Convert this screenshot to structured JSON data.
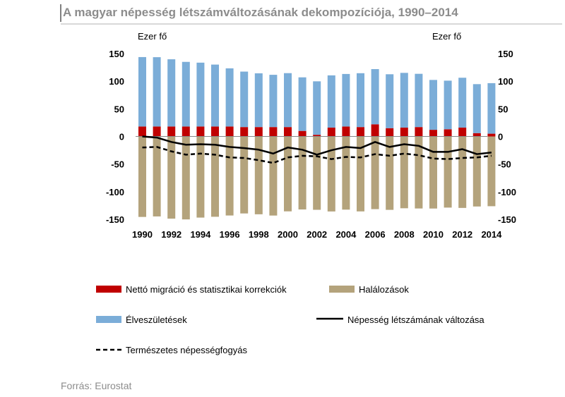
{
  "chart_data": {
    "type": "bar",
    "title": "A magyar népesség létszámváltozásának dekompozíciója, 1990–2014",
    "ylabel_left": "Ezer fő",
    "ylabel_right": "Ezer fő",
    "ylim": [
      -150,
      150
    ],
    "yticks": [
      150,
      100,
      50,
      0,
      -50,
      -100,
      -150
    ],
    "x": [
      1990,
      1991,
      1992,
      1993,
      1994,
      1995,
      1996,
      1997,
      1998,
      1999,
      2000,
      2001,
      2002,
      2003,
      2004,
      2005,
      2006,
      2007,
      2008,
      2009,
      2010,
      2011,
      2012,
      2013,
      2014
    ],
    "xtick_labels": [
      "1990",
      "1992",
      "1994",
      "1996",
      "1998",
      "2000",
      "2002",
      "2004",
      "2006",
      "2008",
      "2010",
      "2012",
      "2014"
    ],
    "series": [
      {
        "name": "Nettó migráció és statisztikai korrekciók",
        "kind": "bar",
        "color": "#c00000",
        "values": [
          18,
          18,
          18,
          18,
          18,
          18,
          18,
          17,
          17,
          17,
          17,
          10,
          3,
          16,
          18,
          17,
          22,
          15,
          16,
          17,
          12,
          13,
          16,
          6,
          5
        ]
      },
      {
        "name": "Élveszületések",
        "kind": "bar",
        "color": "#7badd8",
        "values": [
          125.7,
          125.5,
          121.7,
          117,
          115.6,
          112.1,
          105.3,
          100.4,
          97.3,
          94.6,
          97.6,
          97.0,
          96.8,
          94.6,
          95.1,
          97.5,
          99.9,
          97.6,
          99.1,
          96.4,
          90.3,
          88.0,
          90.3,
          88.7,
          91.5
        ]
      },
      {
        "name": "Halálozások",
        "kind": "bar",
        "color": "#b4a37c",
        "values": [
          -145.7,
          -144.8,
          -148.8,
          -150.2,
          -146.9,
          -145.4,
          -143.1,
          -139.4,
          -140.9,
          -143.2,
          -135.6,
          -132.2,
          -132.8,
          -135.8,
          -132.5,
          -135.7,
          -131.6,
          -132.9,
          -130.0,
          -130.4,
          -130.5,
          -128.8,
          -129.4,
          -126.8,
          -126.3
        ]
      },
      {
        "name": "Népesség létszámának változása",
        "kind": "line",
        "style": "solid",
        "color": "#000000",
        "values": [
          0,
          -2,
          -10,
          -15,
          -14,
          -15,
          -19,
          -21,
          -24,
          -31,
          -20,
          -24,
          -33,
          -25,
          -19,
          -21,
          -10,
          -19,
          -14,
          -17,
          -28,
          -28,
          -23,
          -32,
          -29
        ]
      },
      {
        "name": "Természetes népességfogyás",
        "kind": "line",
        "style": "dashed",
        "color": "#000000",
        "values": [
          -20,
          -19,
          -27,
          -33,
          -31,
          -33,
          -38,
          -39,
          -43,
          -48,
          -38,
          -35,
          -36,
          -41,
          -37,
          -38,
          -32,
          -35,
          -31,
          -34,
          -40,
          -41,
          -39,
          -38,
          -35
        ]
      }
    ],
    "legend": [
      "Nettó migráció és statisztikai korrekciók",
      "Halálozások",
      "Élveszületések",
      "Népesség létszámának változása",
      "Természetes népességfogyás"
    ],
    "legend_placement": "bottom",
    "grid": false
  },
  "source": "Forrás: Eurostat"
}
